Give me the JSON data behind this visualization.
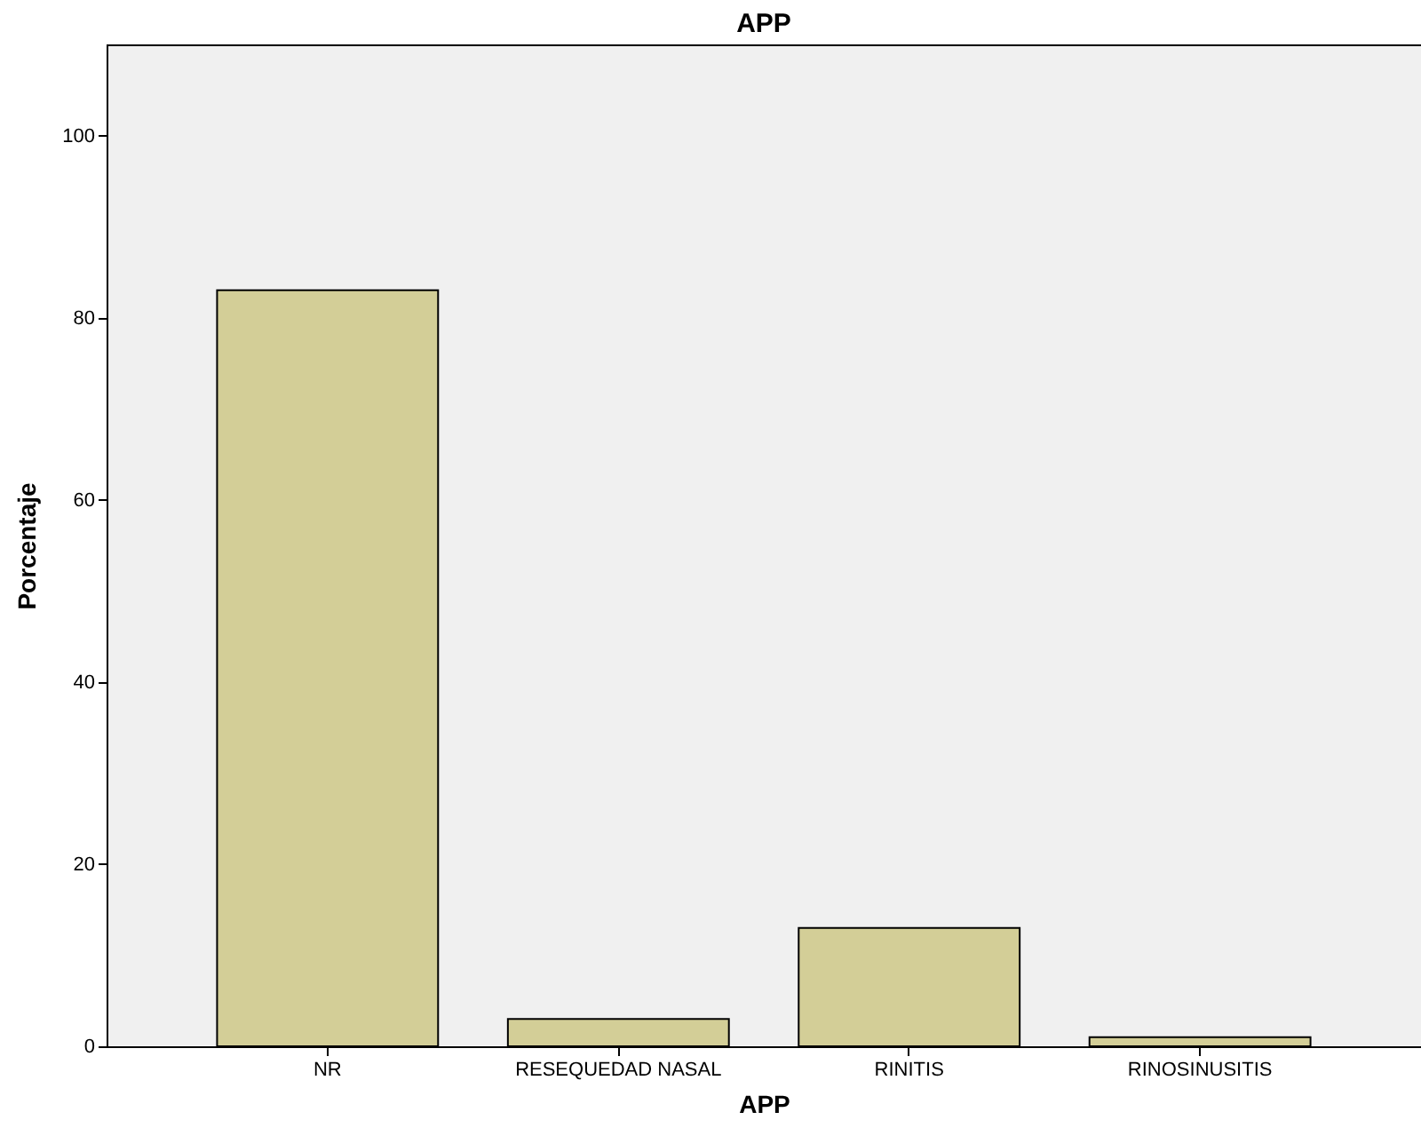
{
  "chart_data": {
    "type": "bar",
    "title": "APP",
    "xlabel": "APP",
    "ylabel": "Porcentaje",
    "categories": [
      "NR",
      "RESEQUEDAD NASAL",
      "RINITIS",
      "RINOSINUSITIS"
    ],
    "values": [
      83,
      3,
      13,
      1
    ],
    "color": "#d3ce97",
    "ylim": [
      0,
      110
    ],
    "yticks": [
      0,
      20,
      40,
      60,
      80,
      100
    ],
    "grid": false
  }
}
